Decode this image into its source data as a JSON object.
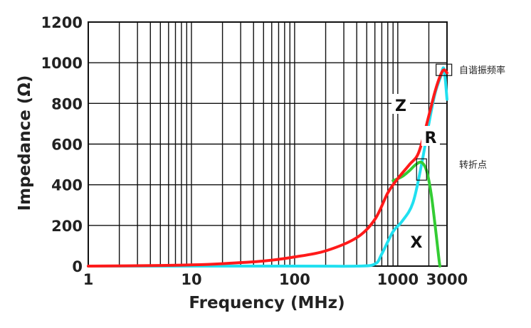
{
  "chart_data": {
    "type": "line",
    "title": "",
    "xlabel": "Frequency (MHz)",
    "ylabel": "Impedance (Ω)",
    "xscale": "log",
    "xlim": [
      1,
      3000
    ],
    "ylim": [
      0,
      1200
    ],
    "grid": true,
    "x_ticks": [
      1,
      10,
      100,
      1000,
      3000
    ],
    "x_tick_labels": [
      "1",
      "10",
      "100",
      "1000",
      "3000"
    ],
    "y_ticks": [
      0,
      200,
      400,
      600,
      800,
      1000,
      1200
    ],
    "y_tick_labels": [
      "0",
      "200",
      "400",
      "600",
      "800",
      "1000",
      "1200"
    ],
    "series": [
      {
        "name": "Z",
        "color": "#ff1a1a",
        "points": [
          [
            1,
            0
          ],
          [
            5,
            3
          ],
          [
            10,
            6
          ],
          [
            20,
            12
          ],
          [
            50,
            25
          ],
          [
            100,
            45
          ],
          [
            200,
            75
          ],
          [
            400,
            140
          ],
          [
            600,
            230
          ],
          [
            800,
            360
          ],
          [
            1000,
            430
          ],
          [
            1300,
            500
          ],
          [
            1600,
            560
          ],
          [
            2000,
            740
          ],
          [
            2300,
            860
          ],
          [
            2600,
            940
          ],
          [
            2800,
            965
          ],
          [
            3000,
            950
          ]
        ]
      },
      {
        "name": "R",
        "color": "#20e0f0",
        "points": [
          [
            1,
            0
          ],
          [
            100,
            0
          ],
          [
            400,
            0
          ],
          [
            600,
            10
          ],
          [
            700,
            60
          ],
          [
            900,
            170
          ],
          [
            1100,
            220
          ],
          [
            1400,
            310
          ],
          [
            1700,
            500
          ],
          [
            2000,
            700
          ],
          [
            2300,
            850
          ],
          [
            2600,
            930
          ],
          [
            2800,
            970
          ],
          [
            3000,
            820
          ]
        ]
      },
      {
        "name": "X",
        "color": "#33cc33",
        "points": [
          [
            900,
            420
          ],
          [
            1100,
            440
          ],
          [
            1300,
            470
          ],
          [
            1500,
            500
          ],
          [
            1700,
            510
          ],
          [
            1900,
            470
          ],
          [
            2100,
            360
          ],
          [
            2300,
            200
          ],
          [
            2500,
            40
          ],
          [
            2560,
            0
          ]
        ]
      }
    ],
    "annotations": [
      {
        "text": "自谐振频率",
        "at": [
          2800,
          965
        ]
      },
      {
        "text": "转折点",
        "at": [
          1700,
          510
        ]
      }
    ]
  }
}
